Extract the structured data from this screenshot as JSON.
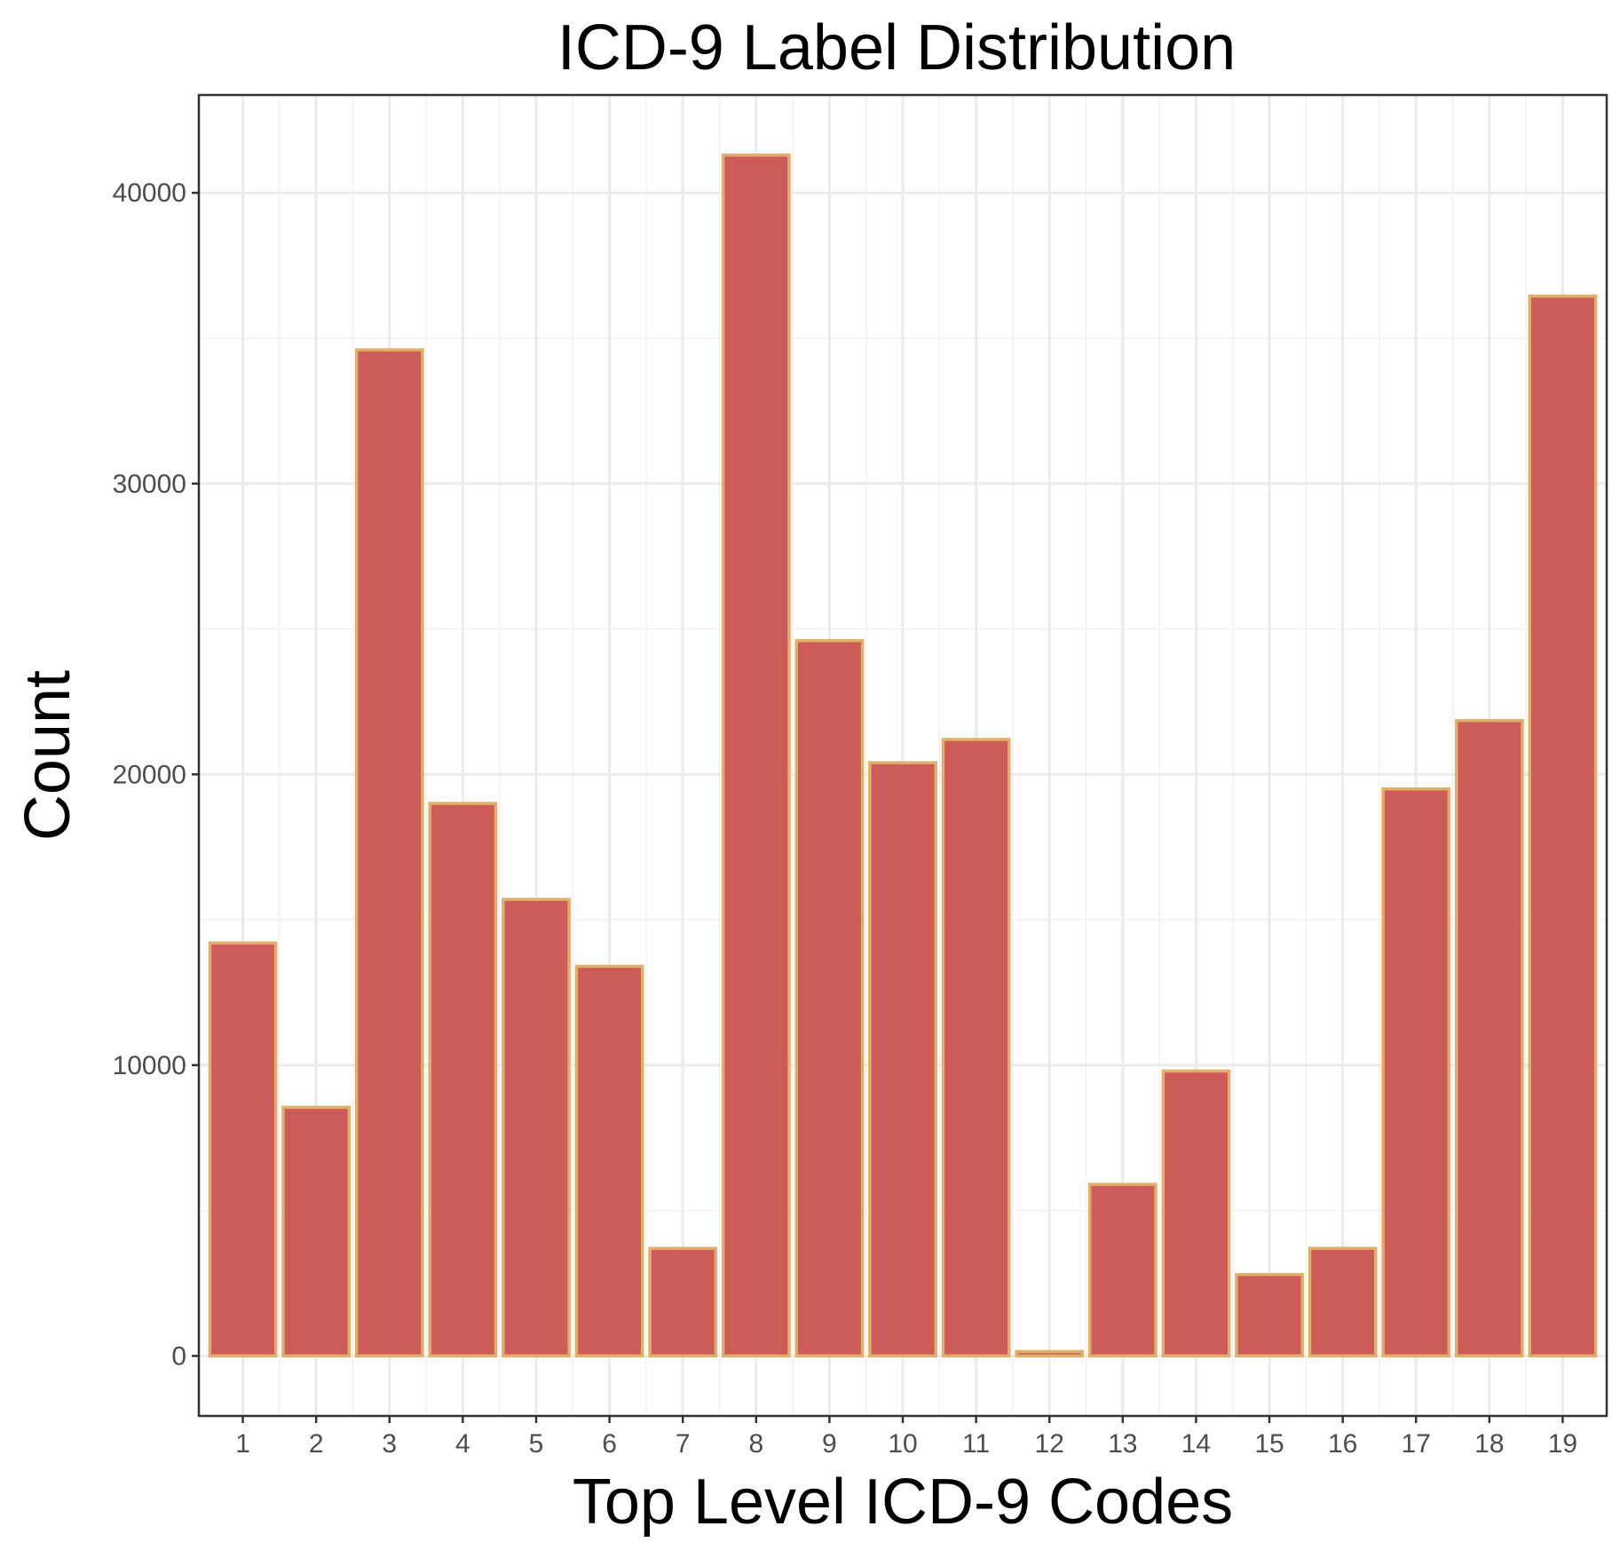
{
  "chart_data": {
    "type": "bar",
    "title": "ICD-9 Label Distribution",
    "xlabel": "Top Level ICD-9 Codes",
    "ylabel": "Count",
    "categories": [
      "1",
      "2",
      "3",
      "4",
      "5",
      "6",
      "7",
      "8",
      "9",
      "10",
      "11",
      "12",
      "13",
      "14",
      "15",
      "16",
      "17",
      "18",
      "19"
    ],
    "values": [
      14200,
      8550,
      34600,
      19000,
      15700,
      13400,
      3700,
      41300,
      24600,
      20400,
      21200,
      150,
      5900,
      9800,
      2800,
      3700,
      19500,
      21850,
      36450
    ],
    "yticks": [
      0,
      10000,
      20000,
      30000,
      40000
    ],
    "ytick_labels": [
      "0",
      "10000",
      "20000",
      "30000",
      "40000"
    ],
    "ylim": [
      -2065,
      43365
    ],
    "grid": true,
    "legend": "none",
    "colors": {
      "bar_fill": "#cd5b57",
      "bar_outline": "#e0b06a"
    }
  }
}
